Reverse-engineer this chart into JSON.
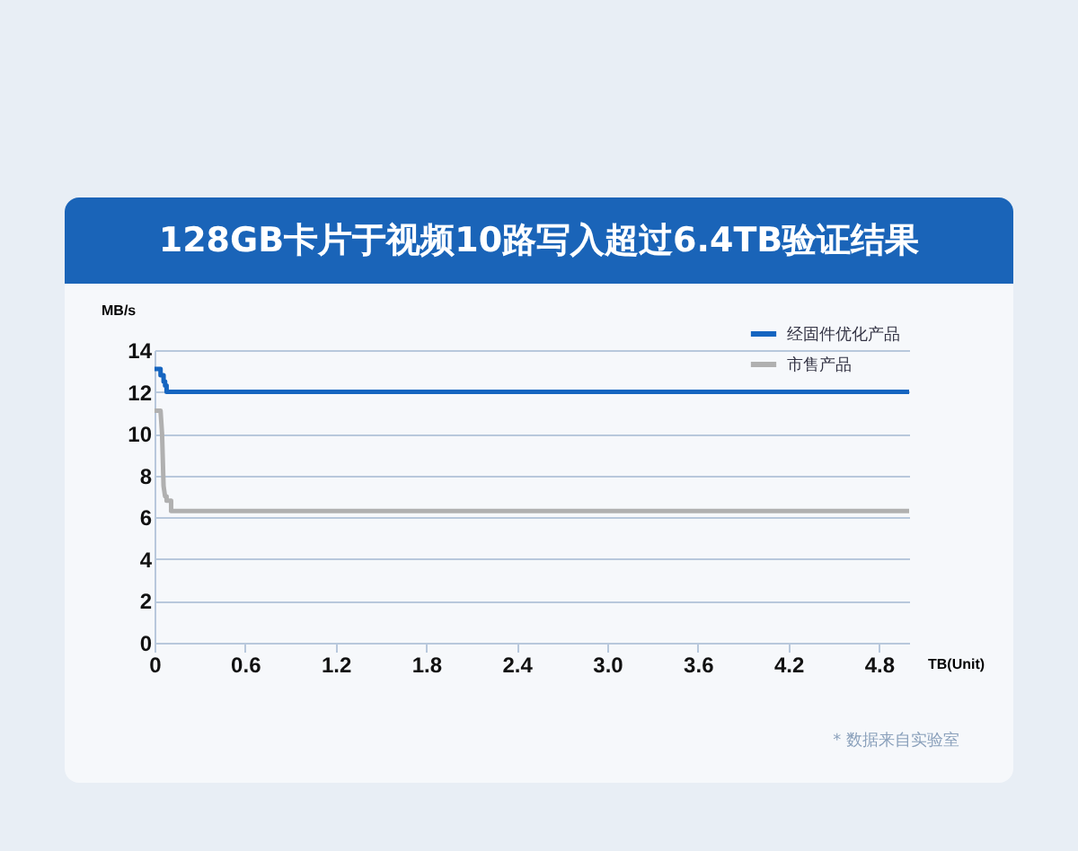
{
  "chart_data": {
    "type": "line",
    "title": "128GB卡片于视频10路写入超过6.4TB验证结果",
    "ylabel": "MB/s",
    "xlabel": "TB(Unit)",
    "xlim": [
      0,
      5
    ],
    "xticks": [
      0,
      0.6,
      1.2,
      1.8,
      2.4,
      {
        "value": 3,
        "label": "3.0"
      },
      3.6,
      4.2,
      4.8
    ],
    "ylim": [
      0,
      14
    ],
    "yticks": [
      0,
      2,
      4,
      6,
      8,
      10,
      12,
      14
    ],
    "grid": "y",
    "legend": "top right",
    "marker": "none",
    "line_style": "solid",
    "annotations": [
      "* 数据来自实验室"
    ],
    "series": [
      {
        "name": "经固件优化产品",
        "color": "#1565c0",
        "x": [
          0,
          0.04,
          0.04,
          0.06,
          0.06,
          0.07,
          0.07,
          0.08,
          0.08,
          5.0
        ],
        "values": [
          13.1,
          13.1,
          12.8,
          12.8,
          12.5,
          12.5,
          12.3,
          12.3,
          12.0,
          12.0
        ]
      },
      {
        "name": "市售产品",
        "color": "#b0b0b0",
        "x": [
          0,
          0.04,
          0.05,
          0.06,
          0.07,
          0.08,
          0.08,
          0.11,
          0.11,
          5.0
        ],
        "values": [
          11.1,
          11.1,
          10.0,
          7.5,
          7.0,
          7.0,
          6.8,
          6.8,
          6.3,
          6.3
        ]
      }
    ]
  }
}
